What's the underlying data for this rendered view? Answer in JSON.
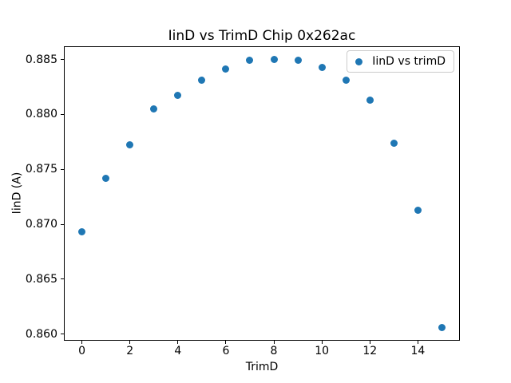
{
  "theme": {
    "background": "#ffffff",
    "text": "#000000",
    "spine": "#000000",
    "legend_border": "#cccccc",
    "marker": "#1f77b4"
  },
  "chart_data": {
    "type": "scatter",
    "title": "IinD vs TrimD Chip 0x262ac",
    "xlabel": "TrimD",
    "ylabel": "IinD (A)",
    "legend_position": "upper right",
    "grid": false,
    "series": [
      {
        "name": "IinD vs trimD",
        "marker_color": "#1f77b4",
        "x": [
          0,
          1,
          2,
          3,
          4,
          5,
          6,
          7,
          8,
          9,
          10,
          11,
          12,
          13,
          14,
          15
        ],
        "y": [
          0.8693,
          0.8742,
          0.8772,
          0.8805,
          0.8817,
          0.8831,
          0.8841,
          0.8849,
          0.885,
          0.8849,
          0.8843,
          0.8831,
          0.8813,
          0.8774,
          0.8713,
          0.8606
        ]
      }
    ],
    "xlim": [
      -0.75,
      15.75
    ],
    "ylim": [
      0.8594,
      0.8862
    ],
    "xticks": [
      0,
      2,
      4,
      6,
      8,
      10,
      12,
      14
    ],
    "yticks": [
      0.86,
      0.865,
      0.87,
      0.875,
      0.88,
      0.885
    ],
    "ytick_decimals": 3
  }
}
